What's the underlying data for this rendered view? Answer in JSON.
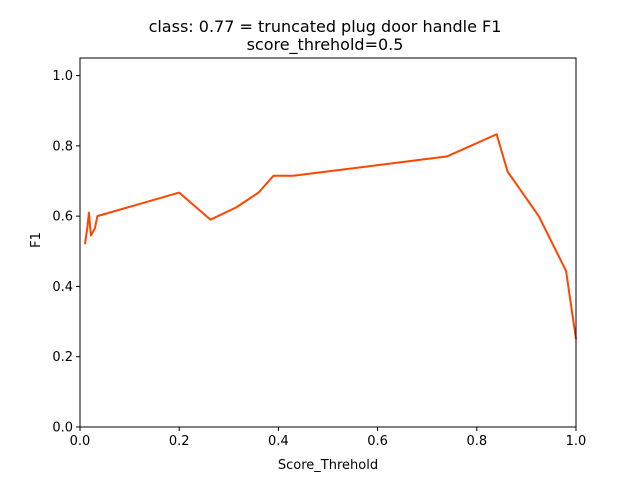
{
  "chart_data": {
    "type": "line",
    "title": "class: 0.77 = truncated plug door handle F1",
    "subtitle": "score_threhold=0.5",
    "xlabel": "Score_Threhold",
    "ylabel": "F1",
    "xlim": [
      0.0,
      1.0
    ],
    "ylim": [
      0.0,
      1.05
    ],
    "xticks": [
      "0.0",
      "0.2",
      "0.4",
      "0.6",
      "0.8",
      "1.0"
    ],
    "yticks": [
      "0.0",
      "0.2",
      "0.4",
      "0.6",
      "0.8",
      "1.0"
    ],
    "grid": false,
    "series": [
      {
        "color": "#ff4500",
        "x": [
          0.01,
          0.015,
          0.018,
          0.022,
          0.03,
          0.035,
          0.2,
          0.263,
          0.315,
          0.36,
          0.39,
          0.43,
          0.74,
          0.84,
          0.862,
          0.925,
          0.98,
          1.0
        ],
        "y": [
          0.52,
          0.57,
          0.61,
          0.545,
          0.565,
          0.6,
          0.667,
          0.59,
          0.625,
          0.667,
          0.715,
          0.715,
          0.77,
          0.833,
          0.727,
          0.6,
          0.444,
          0.25
        ]
      }
    ]
  }
}
